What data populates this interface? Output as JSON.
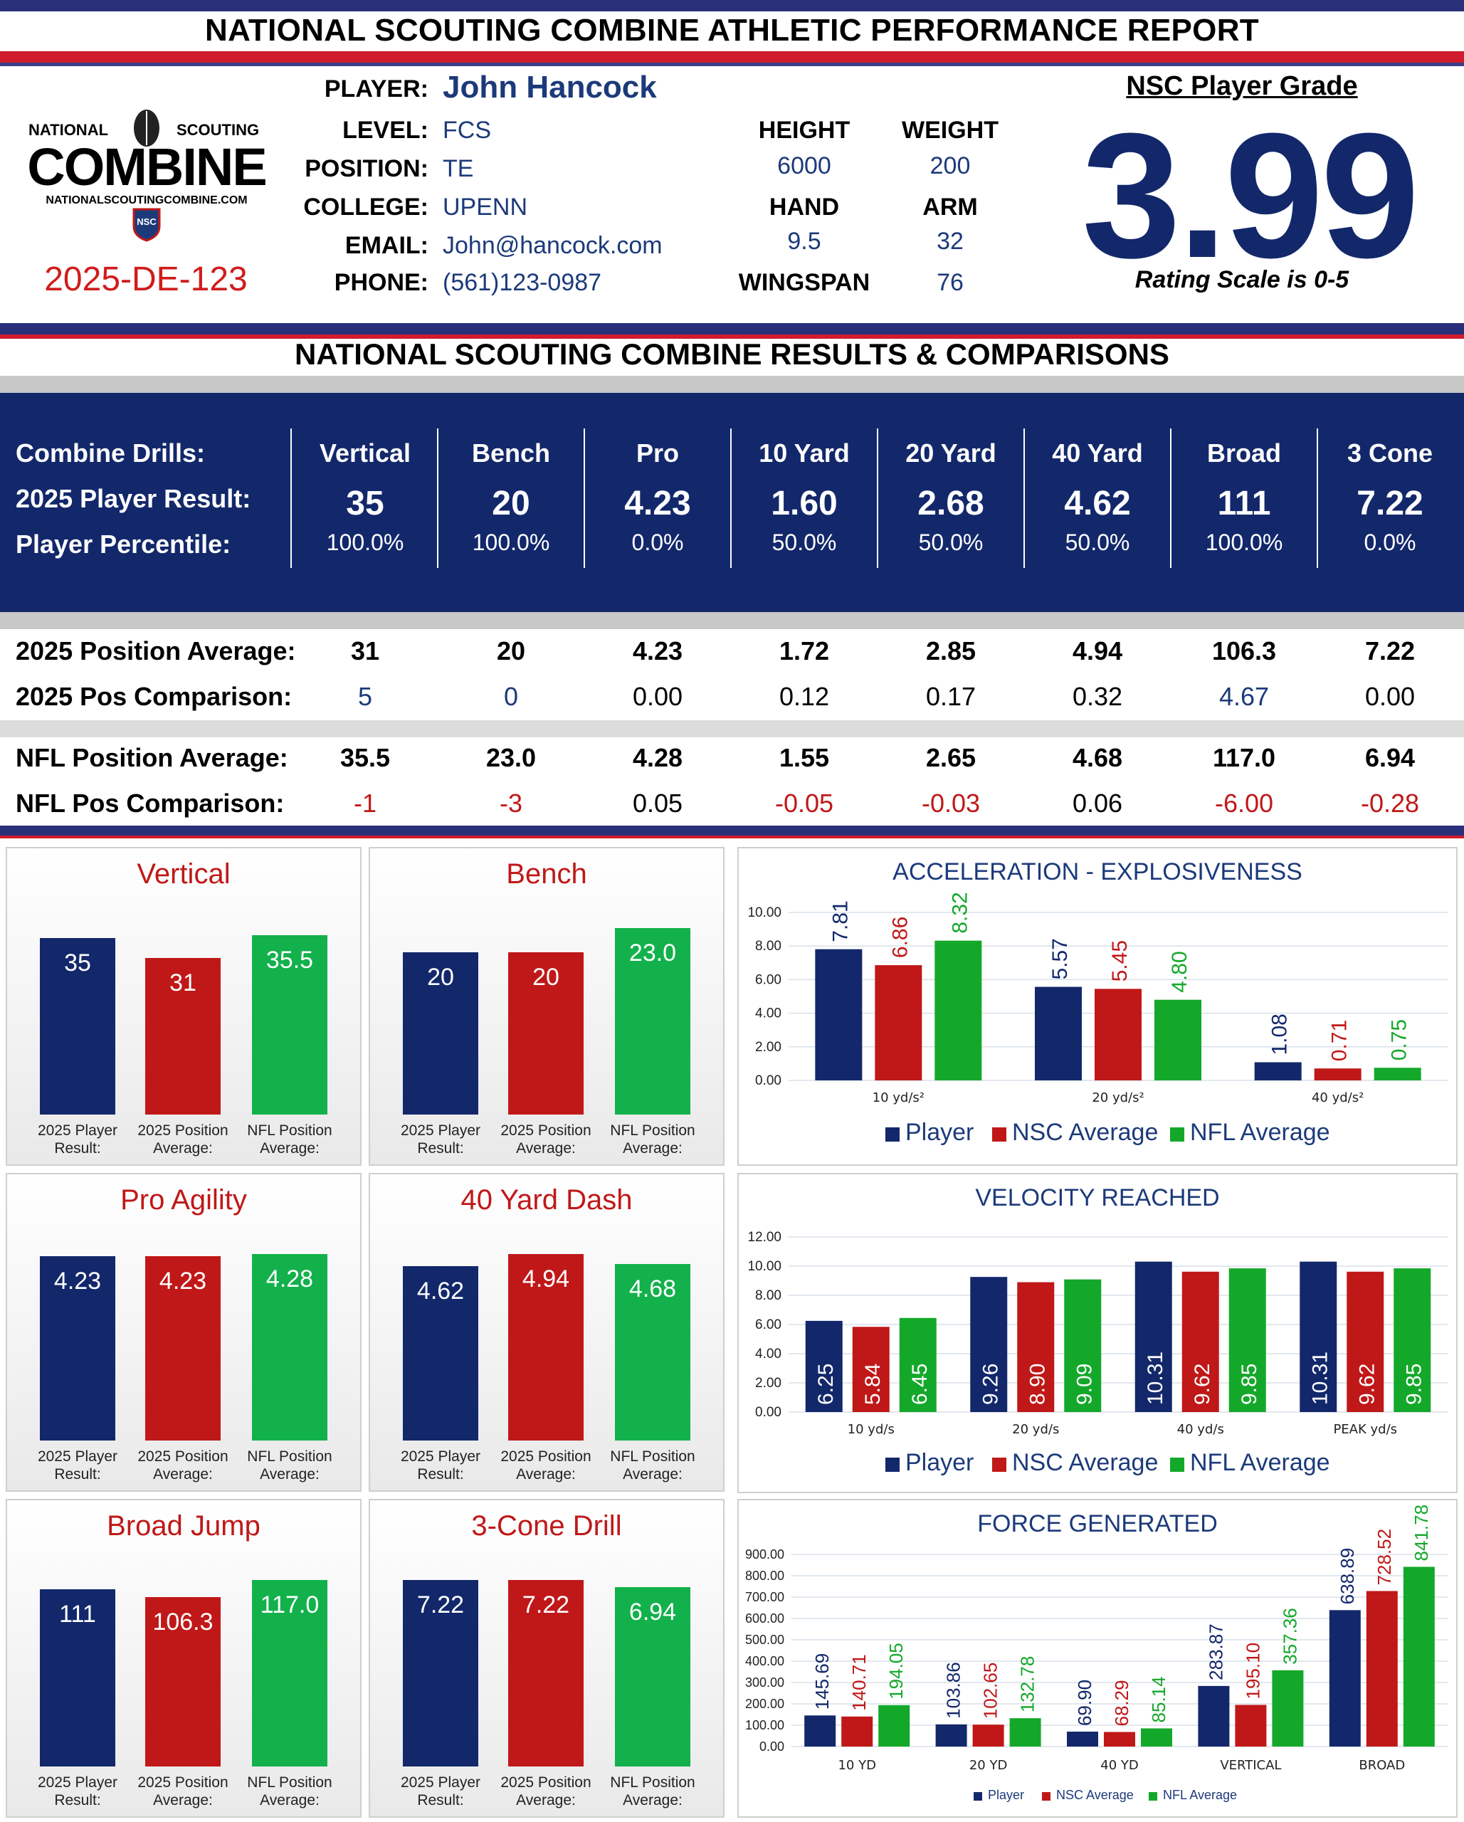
{
  "header": {
    "title": "NATIONAL SCOUTING COMBINE ATHLETIC PERFORMANCE REPORT",
    "logo": {
      "top": "NATIONAL",
      "top2": "SCOUTING",
      "main": "COMBINE",
      "site": "NATIONALSCOUTINGCOMBINE.COM",
      "badge": "NSC"
    },
    "player_id": "2025-DE-123"
  },
  "player": {
    "fields": [
      {
        "label": "PLAYER:",
        "value": "John Hancock"
      },
      {
        "label": "LEVEL:",
        "value": "FCS"
      },
      {
        "label": "POSITION:",
        "value": "TE"
      },
      {
        "label": "COLLEGE:",
        "value": "UPENN"
      },
      {
        "label": "EMAIL:",
        "value": "John@hancock.com"
      },
      {
        "label": "PHONE:",
        "value": "(561)123-0987"
      }
    ],
    "physical": {
      "height_label": "HEIGHT",
      "height": "6000",
      "weight_label": "WEIGHT",
      "weight": "200",
      "hand_label": "HAND",
      "hand": "9.5",
      "arm_label": "ARM",
      "arm": "32",
      "wingspan_label": "WINGSPAN",
      "wingspan": "76"
    }
  },
  "grade": {
    "title": "NSC Player Grade",
    "value": "3.99",
    "scale": "Rating Scale is 0-5"
  },
  "results": {
    "section_title": "NATIONAL SCOUTING COMBINE RESULTS & COMPARISONS",
    "row_labels": [
      "Combine Drills:",
      "2025 Player Result:",
      "Player Percentile:"
    ],
    "drills": [
      {
        "name": "Vertical",
        "result": "35",
        "percentile": "100.0%"
      },
      {
        "name": "Bench",
        "result": "20",
        "percentile": "100.0%"
      },
      {
        "name": "Pro",
        "result": "4.23",
        "percentile": "0.0%"
      },
      {
        "name": "10 Yard",
        "result": "1.60",
        "percentile": "50.0%"
      },
      {
        "name": "20 Yard",
        "result": "2.68",
        "percentile": "50.0%"
      },
      {
        "name": "40 Yard",
        "result": "4.62",
        "percentile": "50.0%"
      },
      {
        "name": "Broad",
        "result": "111",
        "percentile": "100.0%"
      },
      {
        "name": "3 Cone",
        "result": "7.22",
        "percentile": "0.0%"
      }
    ],
    "comparisons": [
      {
        "label": "2025 Position Average:",
        "values": [
          "31",
          "20",
          "4.23",
          "1.72",
          "2.85",
          "4.94",
          "106.3",
          "7.22"
        ],
        "bold": true
      },
      {
        "label": "2025 Pos Comparison:",
        "values": [
          "5",
          "0",
          "0.00",
          "0.12",
          "0.17",
          "0.32",
          "4.67",
          "0.00"
        ],
        "colors": [
          "#1c3a7a",
          "#1c3a7a",
          "#000000",
          "#000000",
          "#000000",
          "#000000",
          "#1c3a7a",
          "#000000"
        ]
      },
      {
        "label": "NFL Position Average:",
        "values": [
          "35.5",
          "23.0",
          "4.28",
          "1.55",
          "2.65",
          "4.68",
          "117.0",
          "6.94"
        ],
        "bold": true
      },
      {
        "label": "NFL Pos Comparison:",
        "values": [
          "-1",
          "-3",
          "0.05",
          "-0.05",
          "-0.03",
          "0.06",
          "-6.00",
          "-0.28"
        ],
        "colors": [
          "#c01818",
          "#c01818",
          "#000000",
          "#c01818",
          "#c01818",
          "#000000",
          "#c01818",
          "#c01818"
        ]
      }
    ]
  },
  "colors": {
    "navy": "#13286b",
    "red": "#c01818",
    "green": "#12b14b",
    "nfl_green": "#14a82a"
  },
  "chart_data": [
    {
      "type": "bar",
      "title": "Vertical",
      "categories": [
        "2025 Player Result:",
        "2025 Position Average:",
        "NFL Position Average:"
      ],
      "values": [
        35,
        31,
        35.5
      ],
      "labels": [
        "35",
        "31",
        "35.5"
      ]
    },
    {
      "type": "bar",
      "title": "Bench",
      "categories": [
        "2025 Player Result:",
        "2025 Position Average:",
        "NFL Position Average:"
      ],
      "values": [
        20,
        20,
        23.0
      ],
      "labels": [
        "20",
        "20",
        "23.0"
      ]
    },
    {
      "type": "bar",
      "title": "Pro Agility",
      "categories": [
        "2025 Player Result:",
        "2025 Position Average:",
        "NFL Position Average:"
      ],
      "values": [
        4.23,
        4.23,
        4.28
      ],
      "labels": [
        "4.23",
        "4.23",
        "4.28"
      ]
    },
    {
      "type": "bar",
      "title": "40 Yard Dash",
      "categories": [
        "2025 Player Result:",
        "2025 Position Average:",
        "NFL Position Average:"
      ],
      "values": [
        4.62,
        4.94,
        4.68
      ],
      "labels": [
        "4.62",
        "4.94",
        "4.68"
      ]
    },
    {
      "type": "bar",
      "title": "Broad Jump",
      "categories": [
        "2025 Player Result:",
        "2025 Position Average:",
        "NFL Position Average:"
      ],
      "values": [
        111,
        106.3,
        117.0
      ],
      "labels": [
        "111",
        "106.3",
        "117.0"
      ]
    },
    {
      "type": "bar",
      "title": "3-Cone Drill",
      "categories": [
        "2025 Player Result:",
        "2025 Position Average:",
        "NFL Position Average:"
      ],
      "values": [
        7.22,
        7.22,
        6.94
      ],
      "labels": [
        "7.22",
        "7.22",
        "6.94"
      ]
    },
    {
      "type": "bar",
      "title": "ACCELERATION - EXPLOSIVENESS",
      "categories": [
        "10 yd/s²",
        "20 yd/s²",
        "40 yd/s²"
      ],
      "ylim": [
        0,
        10
      ],
      "yticks": [
        "0.00",
        "2.00",
        "4.00",
        "6.00",
        "8.00",
        "10.00"
      ],
      "series": [
        {
          "name": "Player",
          "values": [
            7.81,
            5.57,
            1.08
          ],
          "labels": [
            "7.81",
            "5.57",
            "1.08"
          ]
        },
        {
          "name": "NSC Average",
          "values": [
            6.86,
            5.45,
            0.71
          ],
          "labels": [
            "6.86",
            "5.45",
            "0.71"
          ]
        },
        {
          "name": "NFL Average",
          "values": [
            8.32,
            4.8,
            0.75
          ],
          "labels": [
            "8.32",
            "4.80",
            "0.75"
          ]
        }
      ]
    },
    {
      "type": "bar",
      "title": "VELOCITY  REACHED",
      "categories": [
        "10 yd/s",
        "20 yd/s",
        "40 yd/s",
        "PEAK yd/s"
      ],
      "ylim": [
        0,
        12
      ],
      "yticks": [
        "0.00",
        "2.00",
        "4.00",
        "6.00",
        "8.00",
        "10.00",
        "12.00"
      ],
      "series": [
        {
          "name": "Player",
          "values": [
            6.25,
            9.26,
            10.31,
            10.31
          ],
          "labels": [
            "6.25",
            "9.26",
            "10.31",
            "10.31"
          ]
        },
        {
          "name": "NSC Average",
          "values": [
            5.84,
            8.9,
            9.62,
            9.62
          ],
          "labels": [
            "5.84",
            "8.90",
            "9.62",
            "9.62"
          ]
        },
        {
          "name": "NFL Average",
          "values": [
            6.45,
            9.09,
            9.85,
            9.85
          ],
          "labels": [
            "6.45",
            "9.09",
            "9.85",
            "9.85"
          ]
        }
      ]
    },
    {
      "type": "bar",
      "title": "FORCE GENERATED",
      "categories": [
        "10 YD",
        "20 YD",
        "40 YD",
        "VERTICAL",
        "BROAD"
      ],
      "ylim": [
        0,
        900
      ],
      "yticks": [
        "0.00",
        "100.00",
        "200.00",
        "300.00",
        "400.00",
        "500.00",
        "600.00",
        "700.00",
        "800.00",
        "900.00"
      ],
      "series": [
        {
          "name": "Player",
          "values": [
            145.69,
            103.86,
            69.9,
            283.87,
            638.89
          ],
          "labels": [
            "145.69",
            "103.86",
            "69.90",
            "283.87",
            "638.89"
          ]
        },
        {
          "name": "NSC Average",
          "values": [
            140.71,
            102.65,
            68.29,
            195.1,
            728.52
          ],
          "labels": [
            "140.71",
            "102.65",
            "68.29",
            "195.10",
            "728.52"
          ]
        },
        {
          "name": "NFL Average",
          "values": [
            194.05,
            132.78,
            85.14,
            357.36,
            841.78
          ],
          "labels": [
            "194.05",
            "132.78",
            "85.14",
            "357.36",
            "841.78"
          ]
        }
      ]
    }
  ]
}
